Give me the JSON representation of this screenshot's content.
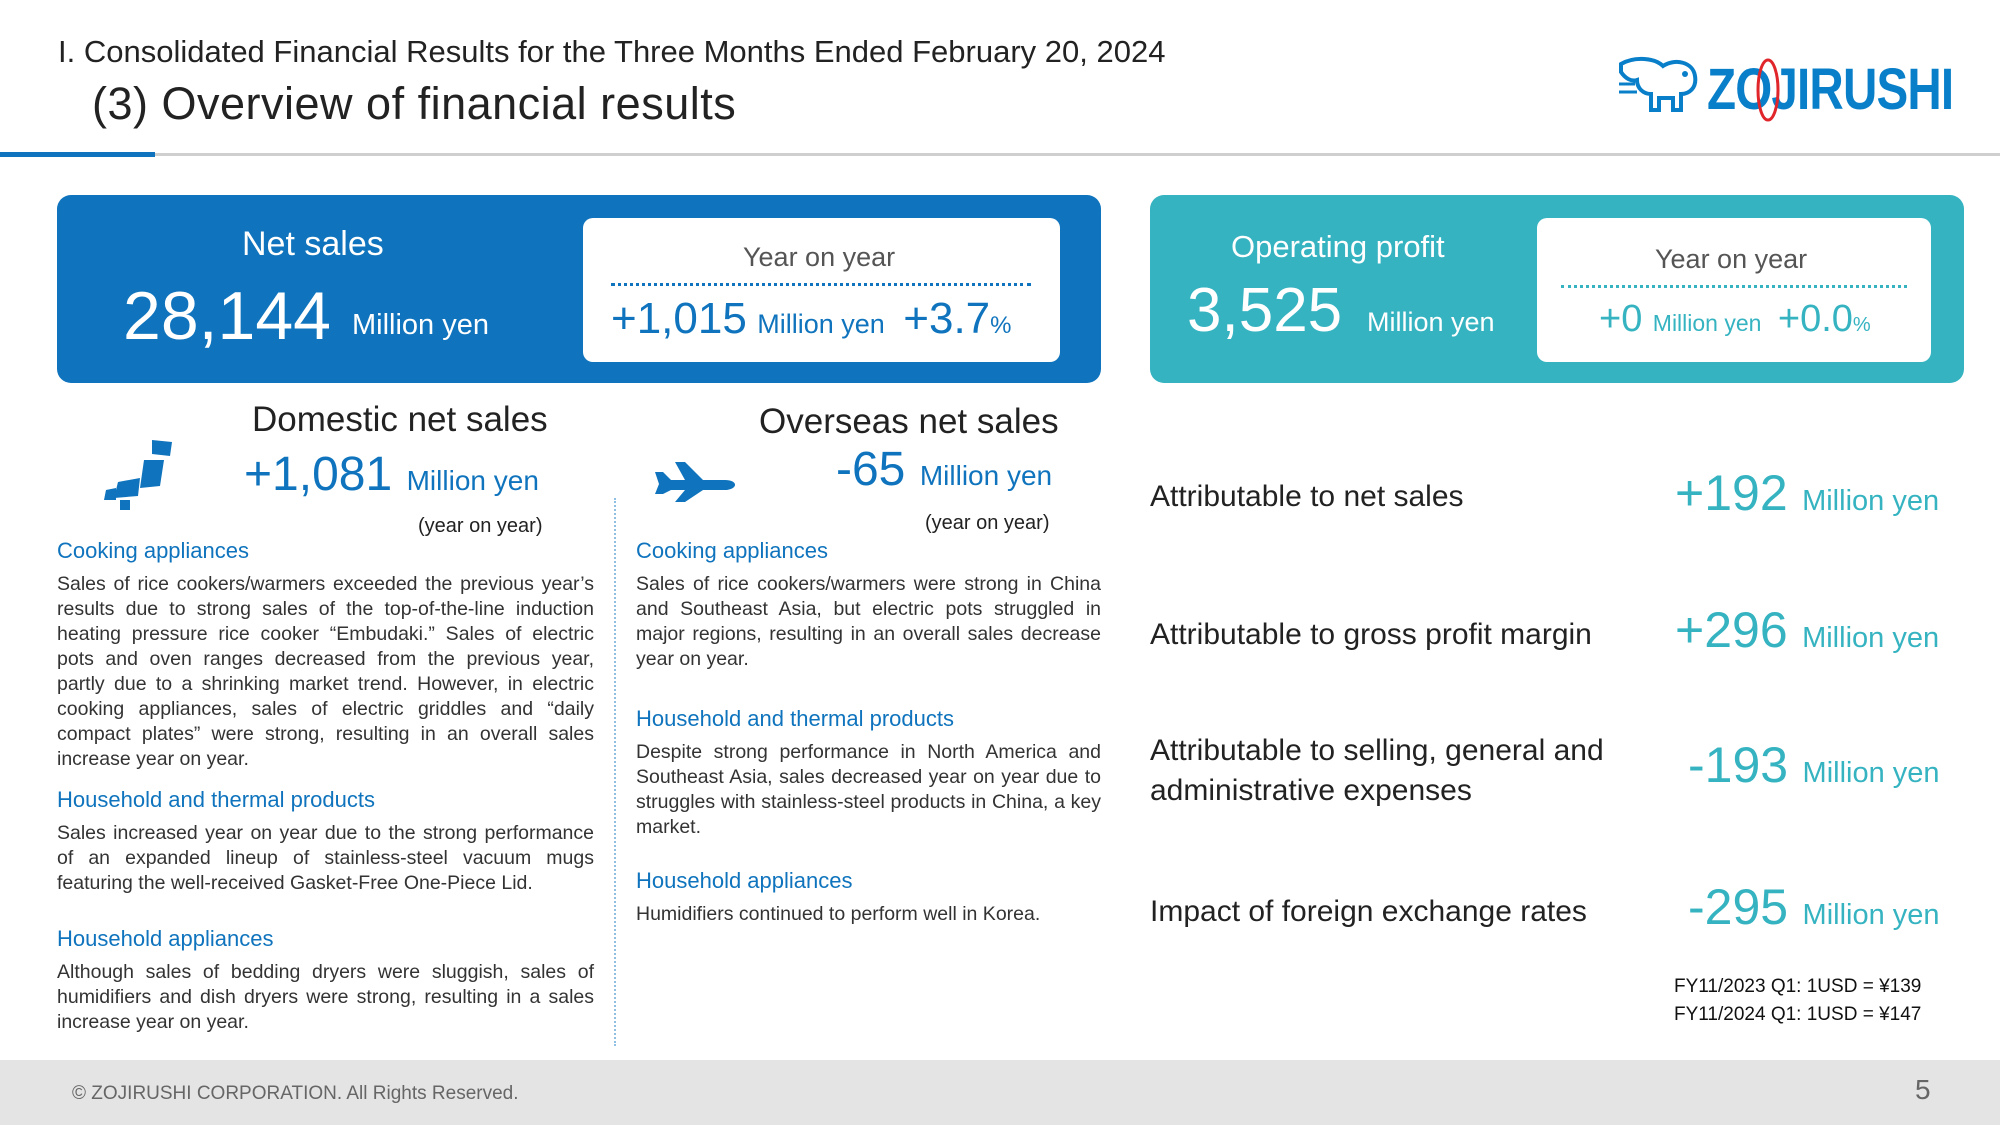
{
  "header": {
    "line1": "I. Consolidated Financial Results for the Three Months Ended February 20, 2024",
    "line2": "(3) Overview of financial results",
    "logo_text": "ZOJIRUSHI"
  },
  "net_sales": {
    "title": "Net sales",
    "value": "28,144",
    "unit": "Million yen",
    "yoy_label": "Year on year",
    "yoy_value": "+1,015",
    "yoy_unit": "Million yen",
    "yoy_pct": "+3.7",
    "pct_sign": "%"
  },
  "operating_profit": {
    "title": "Operating profit",
    "value": "3,525",
    "unit": "Million yen",
    "yoy_label": "Year on year",
    "yoy_value": "+0",
    "yoy_unit": "Million yen",
    "yoy_pct": "+0.0",
    "pct_sign": "%"
  },
  "domestic": {
    "title": "Domestic net sales",
    "value": "+1,081",
    "unit": "Million yen",
    "note": "(year on year)",
    "icon": "japan-map-icon",
    "sections": [
      {
        "heading": "Cooking appliances",
        "text": "Sales of rice cookers/warmers exceeded the previous year’s results due to strong sales of the top-of-the-line induction heating pressure rice cooker “Embudaki.” Sales of electric pots and oven ranges decreased from the previous year, partly due to a shrinking market trend. However, in electric cooking appliances, sales of electric griddles and “daily compact plates” were strong, resulting in an overall sales increase year on year."
      },
      {
        "heading": "Household and thermal products",
        "text": "Sales increased year on year due to the strong performance of an expanded lineup of stainless-steel vacuum mugs featuring the well-received Gasket-Free One-Piece Lid."
      },
      {
        "heading": "Household appliances",
        "text": "Although sales of bedding dryers were sluggish, sales of humidifiers and dish dryers were strong, resulting in a sales increase year on year."
      }
    ]
  },
  "overseas": {
    "title": "Overseas net sales",
    "value": "-65",
    "unit": "Million yen",
    "note": "(year on year)",
    "icon": "airplane-icon",
    "sections": [
      {
        "heading": "Cooking appliances",
        "text": "Sales of rice cookers/warmers were strong in China and Southeast Asia, but electric pots struggled in major regions, resulting in an overall sales decrease year on year."
      },
      {
        "heading": "Household and thermal products",
        "text": "Despite strong performance in North America and Southeast Asia, sales decreased year on year due to struggles with stainless-steel products in China, a key market."
      },
      {
        "heading": "Household appliances",
        "text": "Humidifiers continued to perform well in Korea."
      }
    ]
  },
  "attributions": [
    {
      "label": "Attributable to net sales",
      "value": "+192",
      "unit": "Million yen"
    },
    {
      "label": "Attributable to gross profit margin",
      "value": "+296",
      "unit": "Million yen"
    },
    {
      "label_line1": "Attributable to selling, general and",
      "label_line2": "administrative expenses",
      "value": "-193",
      "unit": "Million yen"
    },
    {
      "label": "Impact of foreign exchange rates",
      "value": "-295",
      "unit": "Million yen"
    }
  ],
  "fx_notes": [
    "FY11/2023 Q1: 1USD = ¥139",
    "FY11/2024 Q1: 1USD = ¥147"
  ],
  "footer": {
    "copyright": "© ZOJIRUSHI CORPORATION. All Rights Reserved.",
    "page": "5"
  },
  "colors": {
    "primary_blue": "#0f74bd",
    "teal": "#35b3c1",
    "footer_gray": "#e4e4e4"
  }
}
